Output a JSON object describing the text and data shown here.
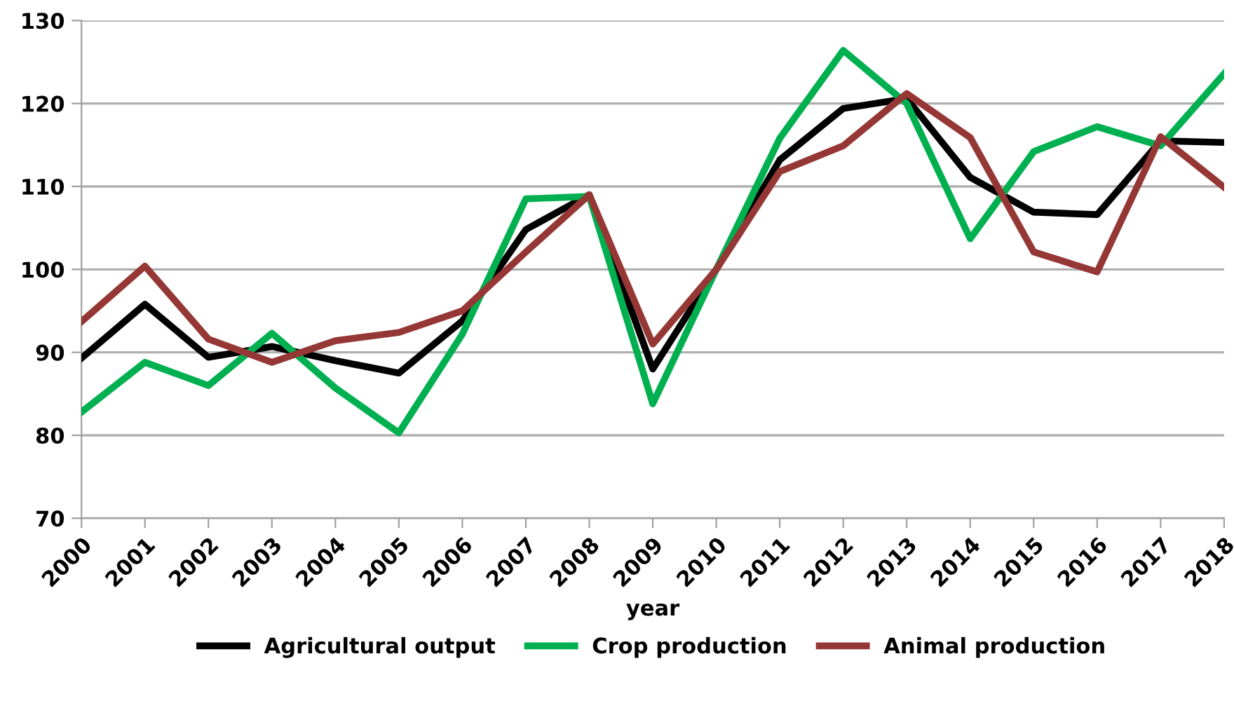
{
  "chart_data": {
    "type": "line",
    "xlabel": "year",
    "categories": [
      "2000",
      "2001",
      "2002",
      "2003",
      "2004",
      "2005",
      "2006",
      "2007",
      "2008",
      "2009",
      "2010",
      "2011",
      "2012",
      "2013",
      "2014",
      "2015",
      "2016",
      "2017",
      "2018"
    ],
    "series": [
      {
        "name": "Agricultural output",
        "color": "#000000",
        "values": [
          89.3,
          95.8,
          89.4,
          90.7,
          89.0,
          87.5,
          93.8,
          104.8,
          109.0,
          88.0,
          100.0,
          113.2,
          119.4,
          120.6,
          111.1,
          106.9,
          106.6,
          115.5,
          115.3
        ]
      },
      {
        "name": "Crop production",
        "color": "#00b050",
        "values": [
          82.8,
          88.8,
          86.0,
          92.3,
          85.7,
          80.3,
          92.2,
          108.5,
          108.8,
          83.8,
          100.0,
          115.8,
          126.4,
          120.0,
          103.7,
          114.2,
          117.2,
          114.9,
          123.6
        ]
      },
      {
        "name": "Animal production",
        "color": "#953735",
        "values": [
          93.7,
          100.4,
          91.6,
          88.8,
          91.4,
          92.4,
          95.0,
          102.1,
          109.0,
          91.0,
          100.0,
          111.8,
          114.9,
          121.2,
          115.9,
          102.1,
          99.7,
          116.0,
          109.9
        ]
      }
    ],
    "ylim": [
      70,
      130
    ],
    "yticks": [
      70,
      80,
      90,
      100,
      110,
      120,
      130
    ],
    "grid": "y",
    "legend": "bottom",
    "marker": "none",
    "line_style": "solid"
  }
}
